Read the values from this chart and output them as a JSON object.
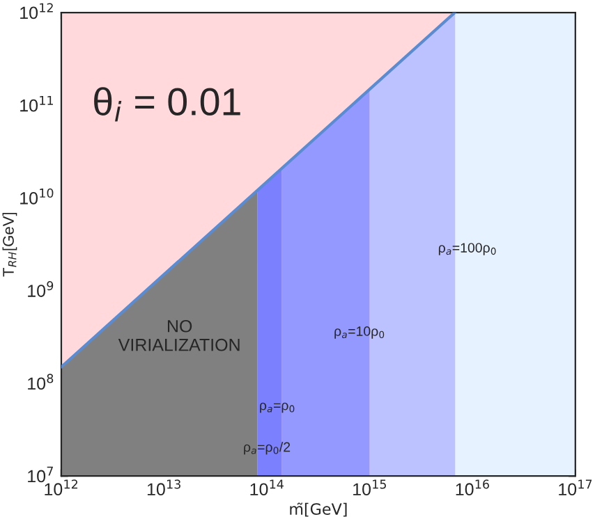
{
  "chart_data": {
    "type": "area",
    "xlabel": "m̃[GeV]",
    "ylabel": "T$_{RH}$[GeV]",
    "log": "xy",
    "xlim": [
      1000000000000.0,
      1e+17
    ],
    "ylim": [
      10000000.0,
      1000000000000.0
    ],
    "xticks": [
      {
        "value": 1000000000000.0,
        "label": "10$^{12}$"
      },
      {
        "value": 10000000000000.0,
        "label": "10$^{13}$"
      },
      {
        "value": 100000000000000.0,
        "label": "10$^{14}$"
      },
      {
        "value": 1000000000000000.0,
        "label": "10$^{15}$"
      },
      {
        "value": 1e+16,
        "label": "10$^{16}$"
      },
      {
        "value": 1e+17,
        "label": "10$^{17}$"
      }
    ],
    "yticks": [
      {
        "value": 10000000.0,
        "label": "10$^{7}$"
      },
      {
        "value": 100000000.0,
        "label": "10$^{8}$"
      },
      {
        "value": 1000000000.0,
        "label": "10$^{9}$"
      },
      {
        "value": 10000000000.0,
        "label": "10$^{10}$"
      },
      {
        "value": 100000000000.0,
        "label": "10$^{11}$"
      },
      {
        "value": 1000000000000.0,
        "label": "10$^{12}$"
      }
    ],
    "series": [
      {
        "color": "#ffd9dc",
        "x": [
          1000000000000.0,
          6700000000000000.0
        ],
        "values": [
          1000000000000.0,
          1000000000000.0
        ]
      },
      {
        "color": "#808080",
        "x": [
          1000000000000.0,
          81000000000000.0
        ],
        "values": [
          150000000.0,
          12000000000.0
        ]
      },
      {
        "color": "#7b80ff",
        "x": [
          81000000000000.0,
          140000000000000.0
        ],
        "values": [
          12000000000.0,
          21000000000.0
        ]
      },
      {
        "color": "#9499ff",
        "x": [
          140000000000000.0,
          1000000000000000.0
        ],
        "values": [
          21000000000.0,
          150000000000.0
        ]
      },
      {
        "color": "#bcc1ff",
        "x": [
          1000000000000000.0,
          6700000000000000.0,
          6800000000000000.0
        ],
        "values": [
          150000000000.0,
          1000000000000.0,
          1000000000000.0
        ]
      },
      {
        "color": "#e6f2ff",
        "x": [
          6800000000000000.0,
          1e+17
        ],
        "values": [
          1000000000000.0,
          1000000000000.0
        ]
      },
      {
        "type": "line",
        "color": "#5b8bd0",
        "x": [
          1000000000000.0,
          6700000000000000.0
        ],
        "values": [
          150000000.0,
          1000000000000.0
        ]
      }
    ],
    "annotations": [
      "θ$_{i}$ = 0.01",
      "NO\nVIRIALIZATION",
      "ρ$_{a}$=ρ$_{0}$/2",
      "ρ$_{a}$=ρ$_{0}$",
      "ρ$_{a}$=10ρ$_{0}$",
      "ρ$_{a}$=100ρ$_{0}$"
    ]
  }
}
